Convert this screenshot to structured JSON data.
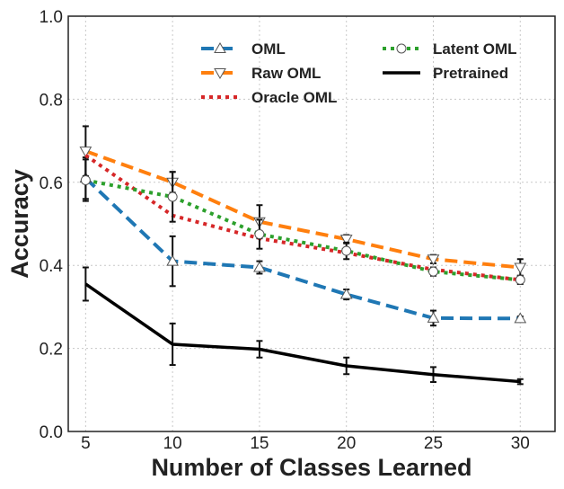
{
  "chart_data": {
    "type": "line",
    "title": "",
    "xlabel": "Number of Classes Learned",
    "ylabel": "Accuracy",
    "x": [
      5,
      10,
      15,
      20,
      25,
      30
    ],
    "xlim": [
      4,
      32
    ],
    "ylim": [
      0,
      1
    ],
    "x_ticks": [
      "5",
      "10",
      "15",
      "20",
      "25",
      "30"
    ],
    "y_ticks": [
      "0.0",
      "0.2",
      "0.4",
      "0.6",
      "0.8",
      "1.0"
    ],
    "grid": true,
    "legend_position": "top-right",
    "series": [
      {
        "name": "OML",
        "color": "#1f77b4",
        "style": "dashed",
        "marker": "triangle-up",
        "values": [
          0.61,
          0.41,
          0.395,
          0.33,
          0.273,
          0.272
        ],
        "errors": [
          0.05,
          0.06,
          0.015,
          0.012,
          0.018,
          0.005
        ]
      },
      {
        "name": "Raw OML",
        "color": "#ff7f0e",
        "style": "dashed",
        "marker": "triangle-down",
        "values": [
          0.675,
          0.6,
          0.505,
          0.463,
          0.415,
          0.395
        ],
        "errors": [
          0.06,
          0.025,
          0.04,
          0.01,
          0.01,
          0.02
        ]
      },
      {
        "name": "Oracle OML",
        "color": "#d62728",
        "style": "dotted",
        "marker": "none",
        "values": [
          0.665,
          0.52,
          0.465,
          0.43,
          0.39,
          0.365
        ],
        "errors": [
          0.0,
          0.0,
          0.0,
          0.0,
          0.0,
          0.0
        ]
      },
      {
        "name": "Latent OML",
        "color": "#2ca02c",
        "style": "dotted",
        "marker": "circle",
        "values": [
          0.605,
          0.565,
          0.475,
          0.435,
          0.385,
          0.365
        ],
        "errors": [
          0.05,
          0.06,
          0.035,
          0.02,
          0.01,
          0.01
        ]
      },
      {
        "name": "Pretrained",
        "color": "#000000",
        "style": "solid",
        "marker": "none",
        "values": [
          0.355,
          0.21,
          0.198,
          0.158,
          0.137,
          0.12
        ],
        "errors": [
          0.04,
          0.05,
          0.02,
          0.02,
          0.018,
          0.006
        ]
      }
    ]
  }
}
